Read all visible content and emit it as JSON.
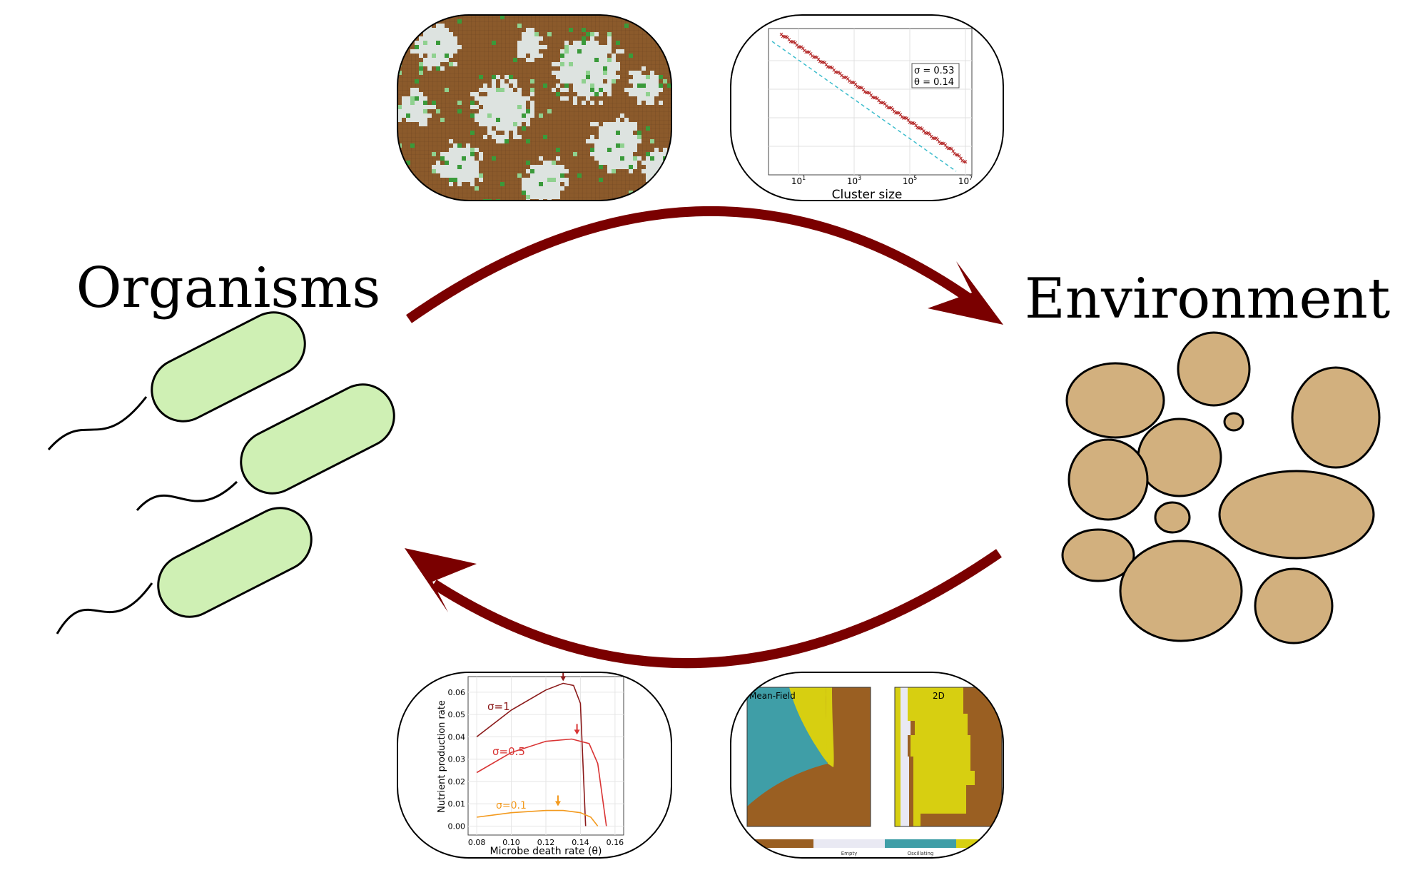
{
  "labels": {
    "organisms": "Organisms",
    "environment": "Environment"
  },
  "colors": {
    "arrow": "#7a0000",
    "bacteria_fill": "#cff0b4",
    "soil_fill": "#d2b07e",
    "lattice_soil": "#8b5a2b",
    "lattice_empty": "#dde3e0",
    "lattice_green": "#3a9a3a"
  },
  "cluster_panel": {
    "annotation_sigma": "σ = 0.53",
    "annotation_theta": "θ = 0.14",
    "xlabel": "Cluster size",
    "ticks": [
      "10",
      "10",
      "10",
      "10"
    ],
    "exponents": [
      "1",
      "3",
      "5",
      "7"
    ]
  },
  "nutrient_panel": {
    "ylabel": "Nutrient production rate",
    "xlabel": "Microbe death rate (θ)",
    "yticks": [
      "0.06",
      "0.05",
      "0.04",
      "0.03",
      "0.02",
      "0.01",
      "0.00"
    ],
    "xticks": [
      "0.08",
      "0.10",
      "0.12",
      "0.14",
      "0.16"
    ],
    "series_labels": [
      "σ=1",
      "σ=0.5",
      "σ=0.1"
    ],
    "series_colors": [
      "#8b1a1a",
      "#d93434",
      "#f39a1e"
    ]
  },
  "phase_panel": {
    "title_left": "Mean-Field",
    "title_right": "2D",
    "legend": [
      "Empty",
      "Oscillating"
    ],
    "colors": {
      "brown": "#9a5f22",
      "teal": "#3f9ea7",
      "yellow": "#d7cf11",
      "empty": "#e9e9f3"
    }
  }
}
